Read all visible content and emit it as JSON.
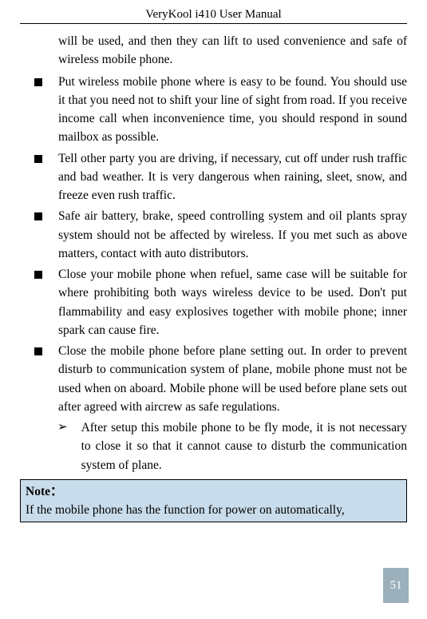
{
  "header": {
    "title": "VeryKool i410 User Manual"
  },
  "content": {
    "intro": "will be used, and then they can lift to used convenience and safe of wireless mobile phone.",
    "bullets": [
      "Put wireless mobile phone where is easy to be found. You should use it that you need not to shift your line of sight from road. If you receive income call when inconvenience time, you should respond in sound mailbox as possible.",
      "Tell other party you are driving, if necessary, cut off under rush traffic and bad weather. It is very dangerous when raining, sleet, snow, and freeze even rush traffic.",
      "Safe air battery, brake, speed controlling system and oil plants spray system should not be affected by wireless. If you met such as above matters, contact with auto distributors.",
      "Close your mobile phone when refuel, same case will be suitable for where prohibiting both ways wireless device to be used. Don't put flammability and easy explosives together with mobile phone; inner spark can cause fire.",
      "Close the mobile phone before plane setting out. In order to prevent disturb to communication system of plane, mobile phone must not be used when on aboard. Mobile phone will be used before plane sets out after agreed with aircrew as safe regulations."
    ],
    "subitem": "After setup this mobile phone to be fly mode, it is not necessary to close it so that it cannot cause to disturb the communication system of plane."
  },
  "note": {
    "label": "Note：",
    "text": "If the mobile phone has the function for power on automatically,"
  },
  "page_number": "51",
  "sub_marker": "➢"
}
